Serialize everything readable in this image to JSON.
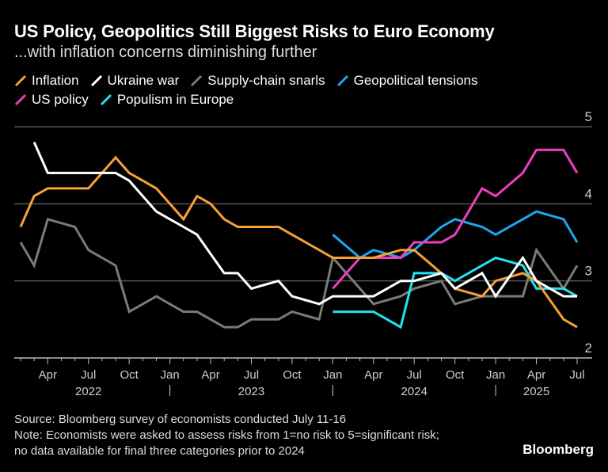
{
  "chart_data": {
    "type": "line",
    "title": "US Policy, Geopolitics Still Biggest Risks to Euro Economy",
    "subtitle": "...with inflation concerns diminishing further",
    "x": [
      "2022-02",
      "2022-03",
      "2022-04",
      "2022-05",
      "2022-06",
      "2022-07",
      "2022-08",
      "2022-09",
      "2022-10",
      "2022-11",
      "2022-12",
      "2023-01",
      "2023-02",
      "2023-03",
      "2023-04",
      "2023-05",
      "2023-06",
      "2023-07",
      "2023-08",
      "2023-09",
      "2023-10",
      "2023-11",
      "2023-12",
      "2024-01",
      "2024-02",
      "2024-03",
      "2024-04",
      "2024-05",
      "2024-06",
      "2024-07",
      "2024-08",
      "2024-09",
      "2024-10",
      "2024-11",
      "2024-12",
      "2025-01",
      "2025-02",
      "2025-03",
      "2025-04",
      "2025-05",
      "2025-06",
      "2025-07"
    ],
    "x_tick_labels": [
      "Apr",
      "Jul",
      "Oct",
      "Jan",
      "Apr",
      "Jul",
      "Oct",
      "Jan",
      "Apr",
      "Jul",
      "Oct",
      "Jan",
      "Apr",
      "Jul"
    ],
    "x_tick_months": [
      "2022-04",
      "2022-07",
      "2022-10",
      "2023-01",
      "2023-04",
      "2023-07",
      "2023-10",
      "2024-01",
      "2024-04",
      "2024-07",
      "2024-10",
      "2025-01",
      "2025-04",
      "2025-07"
    ],
    "year_labels": [
      {
        "label": "2022",
        "month": "2022-07"
      },
      {
        "label": "2023",
        "month": "2023-07"
      },
      {
        "label": "2024",
        "month": "2024-07"
      },
      {
        "label": "2025",
        "month": "2025-04"
      }
    ],
    "year_separators": [
      "2023-01",
      "2024-01",
      "2025-01"
    ],
    "y_ticks": [
      2,
      3,
      4,
      5
    ],
    "ylim": [
      2,
      5
    ],
    "grid": true,
    "legend_placement": "top-left",
    "series": [
      {
        "name": "Inflation",
        "color": "#f7a134",
        "values": [
          3.7,
          4.1,
          4.2,
          4.2,
          4.2,
          4.2,
          4.4,
          4.6,
          4.4,
          4.3,
          4.2,
          4.0,
          3.8,
          4.1,
          4.0,
          3.8,
          3.7,
          3.7,
          3.7,
          3.7,
          3.6,
          3.5,
          3.4,
          3.3,
          3.3,
          3.3,
          3.3,
          3.35,
          3.4,
          3.4,
          3.25,
          3.1,
          2.9,
          2.85,
          2.8,
          3.0,
          3.05,
          3.1,
          3.0,
          2.75,
          2.5,
          2.4
        ]
      },
      {
        "name": "Ukraine war",
        "color": "#ffffff",
        "values": [
          null,
          4.8,
          4.4,
          4.4,
          4.4,
          4.4,
          4.4,
          4.4,
          4.3,
          4.1,
          3.9,
          3.8,
          3.7,
          3.6,
          3.35,
          3.1,
          3.1,
          2.9,
          2.95,
          3.0,
          2.8,
          2.75,
          2.7,
          2.8,
          2.8,
          2.8,
          2.8,
          2.9,
          3.0,
          3.0,
          3.05,
          3.1,
          2.9,
          3.0,
          3.1,
          2.8,
          3.05,
          3.3,
          3.0,
          2.9,
          2.8,
          2.8
        ]
      },
      {
        "name": "Supply-chain snarls",
        "color": "#7a7a7a",
        "values": [
          3.5,
          3.2,
          3.8,
          3.75,
          3.7,
          3.4,
          3.3,
          3.2,
          2.6,
          2.7,
          2.8,
          2.7,
          2.6,
          2.6,
          2.5,
          2.4,
          2.4,
          2.5,
          2.5,
          2.5,
          2.6,
          2.55,
          2.5,
          3.3,
          3.1,
          2.9,
          2.7,
          2.75,
          2.8,
          2.9,
          2.95,
          3.0,
          2.7,
          2.75,
          2.8,
          2.8,
          2.8,
          2.8,
          3.4,
          3.15,
          2.9,
          3.2
        ]
      },
      {
        "name": "Geopolitical tensions",
        "color": "#1ca8ef",
        "values": [
          null,
          null,
          null,
          null,
          null,
          null,
          null,
          null,
          null,
          null,
          null,
          null,
          null,
          null,
          null,
          null,
          null,
          null,
          null,
          null,
          null,
          null,
          null,
          3.6,
          3.45,
          3.3,
          3.4,
          3.35,
          3.3,
          3.4,
          3.55,
          3.7,
          3.8,
          3.75,
          3.7,
          3.6,
          3.7,
          3.8,
          3.9,
          3.85,
          3.8,
          3.5
        ]
      },
      {
        "name": "US policy",
        "color": "#ef3fbf",
        "values": [
          null,
          null,
          null,
          null,
          null,
          null,
          null,
          null,
          null,
          null,
          null,
          null,
          null,
          null,
          null,
          null,
          null,
          null,
          null,
          null,
          null,
          null,
          null,
          2.9,
          3.1,
          3.3,
          3.3,
          3.3,
          3.3,
          3.5,
          3.5,
          3.5,
          3.6,
          3.9,
          4.2,
          4.1,
          4.25,
          4.4,
          4.7,
          4.7,
          4.7,
          4.4
        ]
      },
      {
        "name": "Populism in Europe",
        "color": "#22e3f0",
        "values": [
          null,
          null,
          null,
          null,
          null,
          null,
          null,
          null,
          null,
          null,
          null,
          null,
          null,
          null,
          null,
          null,
          null,
          null,
          null,
          null,
          null,
          null,
          null,
          2.6,
          2.6,
          2.6,
          2.6,
          2.5,
          2.4,
          3.1,
          3.1,
          3.1,
          3.0,
          3.1,
          3.2,
          3.3,
          3.25,
          3.2,
          2.9,
          2.9,
          2.9,
          2.8
        ]
      }
    ]
  },
  "footer": {
    "source": "Source: Bloomberg survey of economists conducted July 11-16",
    "note_line1": "Note: Economists were asked to assess risks from 1=no risk to 5=significant risk;",
    "note_line2": "no data available for final three categories prior to 2024",
    "brand": "Bloomberg"
  }
}
